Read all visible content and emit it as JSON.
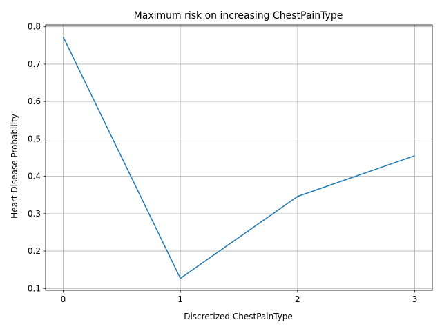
{
  "chart_data": {
    "type": "line",
    "title": "Maximum risk on increasing ChestPainType",
    "xlabel": "Discretized ChestPainType",
    "ylabel": "Heart Disease Probability",
    "x": [
      0,
      1,
      2,
      3
    ],
    "series": [
      {
        "values": [
          0.773,
          0.127,
          0.346,
          0.455
        ],
        "color": "#1f77b4"
      }
    ],
    "xlim": [
      -0.15,
      3.15
    ],
    "ylim": [
      0.095,
      0.805
    ],
    "xticks": [
      0,
      1,
      2,
      3
    ],
    "yticks": [
      0.1,
      0.2,
      0.3,
      0.4,
      0.5,
      0.6,
      0.7,
      0.8
    ],
    "grid": true,
    "legend": "none"
  }
}
